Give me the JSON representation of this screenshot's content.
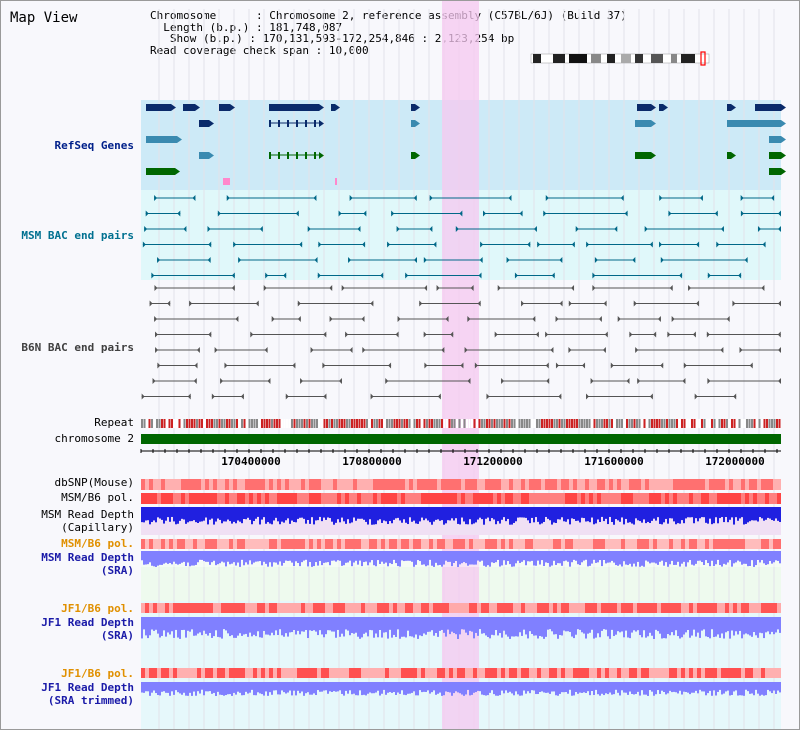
{
  "title": "Map View",
  "info": {
    "chromosome_key": "Chromosome",
    "chromosome_val": "Chromosome 2, reference assembly (C57BL/6J) (Build 37)",
    "length_key": "Length (b.p.)",
    "length_val": "181,748,087",
    "show_key": "Show (b.p.)",
    "show_val": "170,131,593-172,254,846 : 2,123,254 bp",
    "span_key": "Read coverage check span",
    "span_val": "10,000"
  },
  "tracks": {
    "refseq": "RefSeq Genes",
    "msm_bac": "MSM BAC end pairs",
    "b6n_bac": "B6N BAC end pairs",
    "repeat": "Repeat",
    "chromosome": "chromosome 2",
    "dbsnp": "dbSNP(Mouse)",
    "msm_b6_pol_1": "MSM/B6 pol.",
    "msm_read_depth_cap_1": "MSM Read Depth",
    "msm_read_depth_cap_2": "(Capillary)",
    "msm_b6_pol_2": "MSM/B6 pol.",
    "msm_read_depth_sra_1": "MSM Read Depth",
    "msm_read_depth_sra_2": "(SRA)",
    "jf1_b6_pol_1": "JF1/B6 pol.",
    "jf1_read_depth_sra_1": "JF1 Read Depth",
    "jf1_read_depth_sra_2": "(SRA)",
    "jf1_b6_pol_2": "JF1/B6 pol.",
    "jf1_read_depth_trim_1": "JF1 Read Depth",
    "jf1_read_depth_trim_2": "(SRA trimmed)"
  },
  "axis": {
    "ticks": [
      "170400000",
      "170800000",
      "171200000",
      "171600000",
      "172000000"
    ]
  },
  "colors": {
    "refseq_bg": "#cdeaf7",
    "msm_bg": "#e0f8fa",
    "highlight": "#f5c8f0",
    "chromosome_bar": "#006600",
    "repeat_red": "#cc2222",
    "repeat_gray": "#888888",
    "dbsnp": "#ff7070",
    "pol": "#ff4444",
    "depth_cap": "#2020e0",
    "depth_sra": "#8080ff",
    "refseq_navy": "#0a2a6a",
    "refseq_teal": "#3a8ab0",
    "refseq_green": "#006600",
    "msm_line": "#006888",
    "b6n_line": "#555555"
  }
}
